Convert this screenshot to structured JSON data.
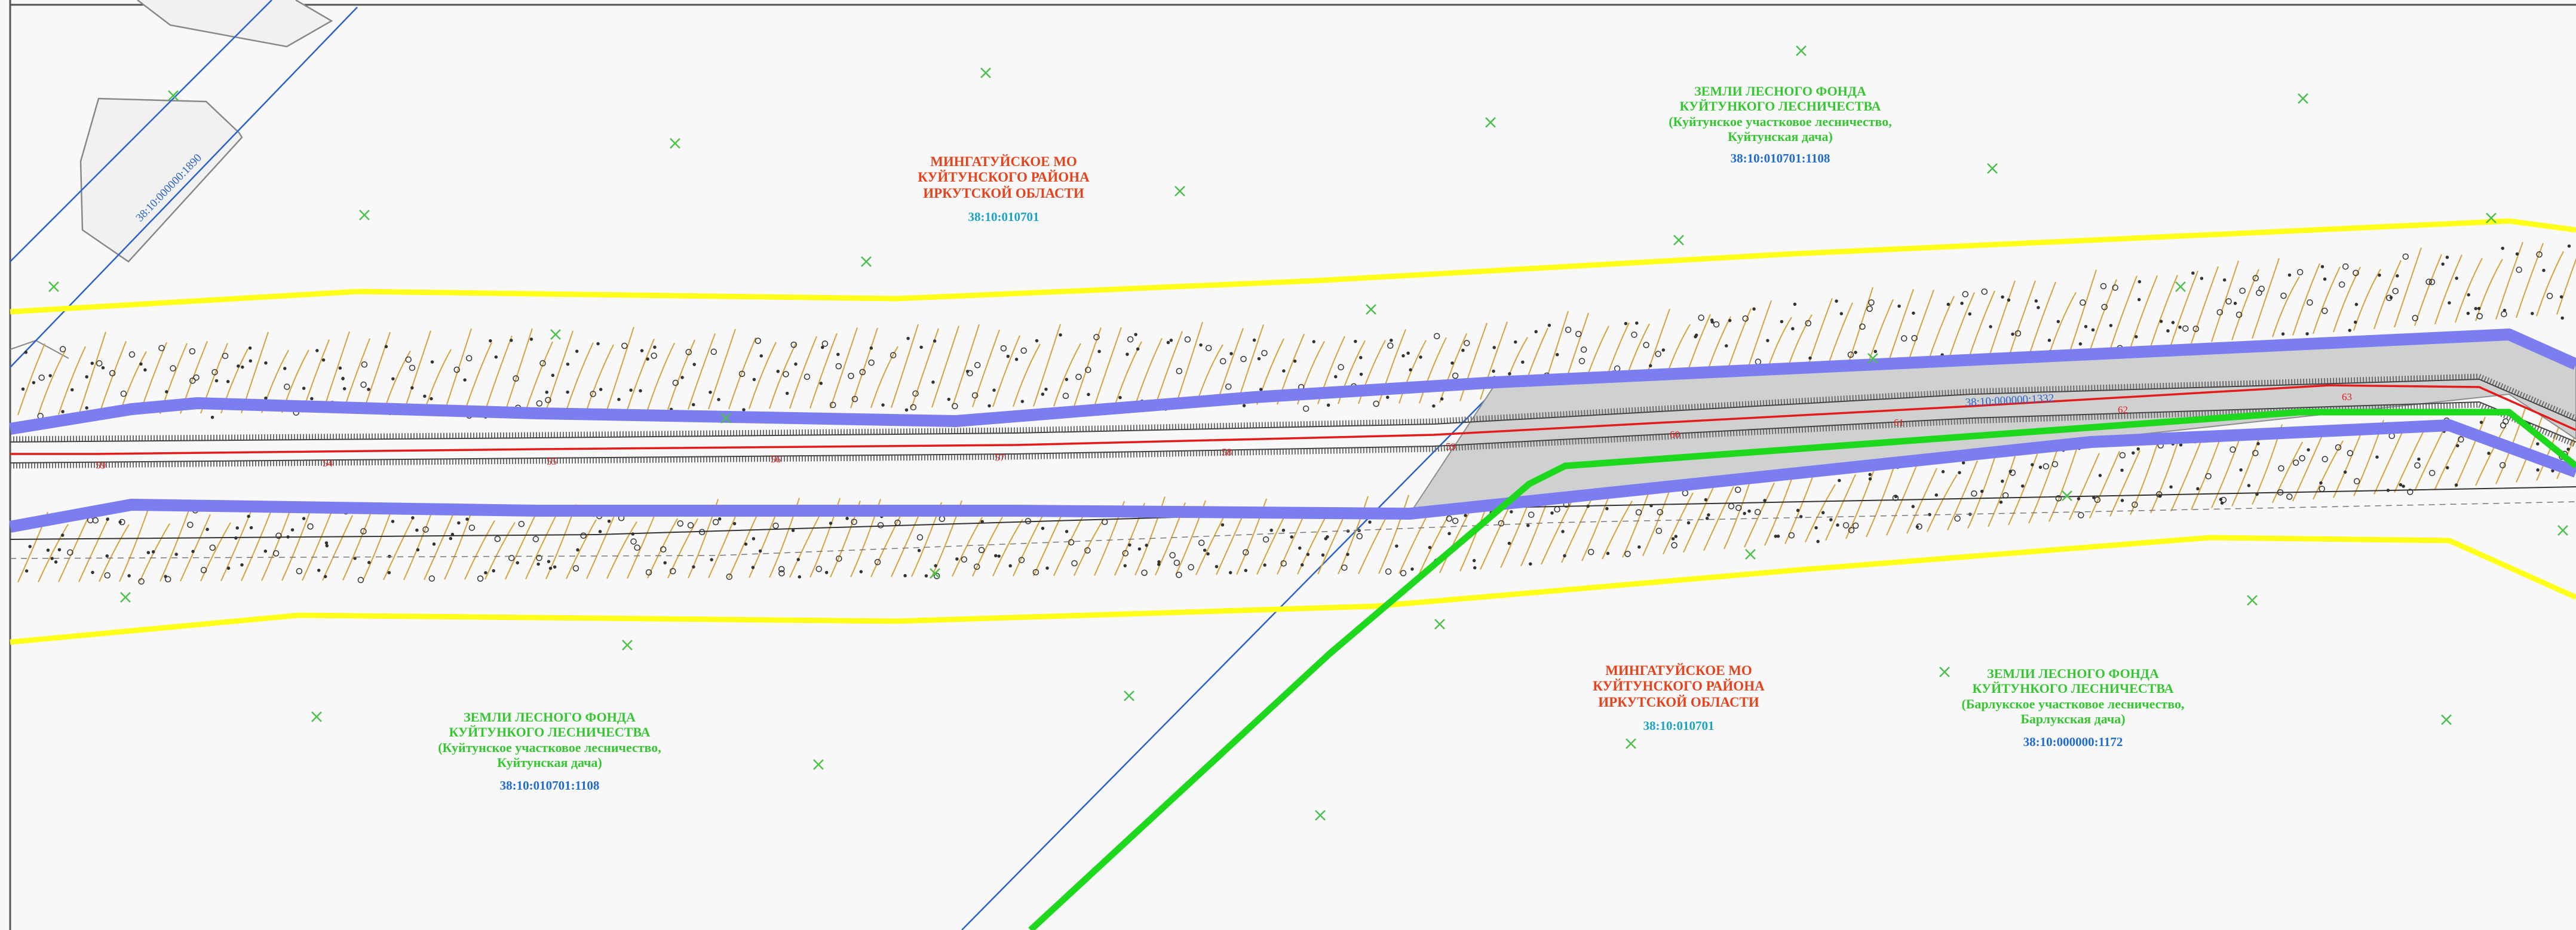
{
  "map": {
    "areas": [
      {
        "id": "mingatuy-north",
        "lines": [
          "МИНГАТУЙСКОЕ МО",
          "КУЙТУНСКОГО РАЙОНА",
          "ИРКУТСКОЙ ОБЛАСТИ"
        ],
        "cadastral": "38:10:010701"
      },
      {
        "id": "forest-north",
        "lines": [
          "ЗЕМЛИ ЛЕСНОГО ФОНДА",
          "КУЙТУНКОГО ЛЕСНИЧЕСТВА",
          "(Куйтунское участковое лесничество,",
          "Куйтунская дача)"
        ],
        "cadastral": "38:10:010701:1108"
      },
      {
        "id": "forest-southwest",
        "lines": [
          "ЗЕМЛИ ЛЕСНОГО ФОНДА",
          "КУЙТУНКОГО ЛЕСНИЧЕСТВА",
          "(Куйтунское участковое лесничество,",
          "Куйтунская дача)"
        ],
        "cadastral": "38:10:010701:1108"
      },
      {
        "id": "mingatuy-south",
        "lines": [
          "МИНГАТУЙСКОЕ МО",
          "КУЙТУНСКОГО РАЙОНА",
          "ИРКУТСКОЙ ОБЛАСТИ"
        ],
        "cadastral": "38:10:010701"
      },
      {
        "id": "forest-southeast",
        "lines": [
          "ЗЕМЛИ ЛЕСНОГО ФОНДА",
          "КУЙТУНКОГО ЛЕСНИЧЕСТВА",
          "(Барлукское участковое лесничество,",
          "Барлукская дача)"
        ],
        "cadastral": "38:10:000000:1172"
      }
    ],
    "parcel_labels": {
      "diagonal_parcel": "38:10:000000:1890",
      "road_parcel": "38:10:000000:1332"
    },
    "road_pickets": [
      "59",
      "54",
      "55",
      "56",
      "57",
      "58",
      "59",
      "60",
      "61",
      "62",
      "63"
    ],
    "colors": {
      "background": "#f7f8f7",
      "zone_boundary": "#ffff1a",
      "right_of_way": "#7b7df0",
      "forest_boundary": "#1dd81d",
      "cadastral_line": "#2a62c9",
      "road_axis": "#e41b1b",
      "relief_contours": "#d7a23c",
      "forest_marks": "#4cbf4c"
    },
    "icons": [
      "forest-cross-icon",
      "relief-dot-icon"
    ]
  }
}
